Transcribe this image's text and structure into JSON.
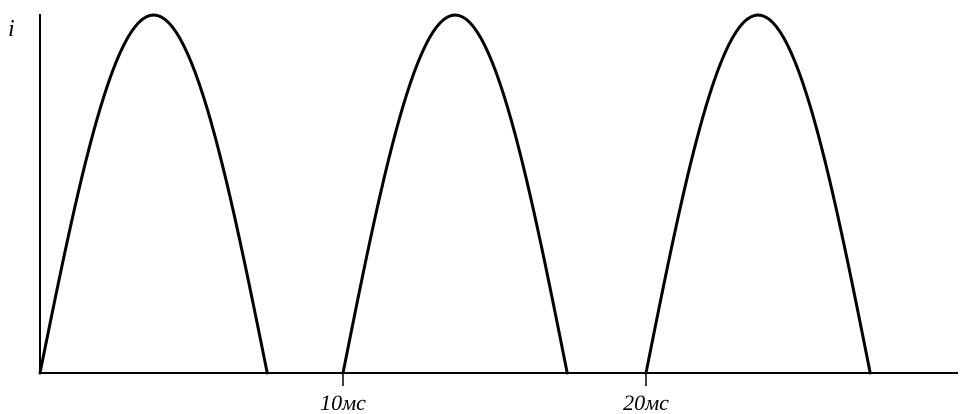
{
  "chart_data": {
    "type": "line",
    "xlabel": "",
    "ylabel": "i",
    "x_ticks": [
      {
        "value": 10,
        "label": "10мс"
      },
      {
        "value": 20,
        "label": "20мс"
      }
    ],
    "xlim": [
      0,
      30.3
    ],
    "ylim": [
      0,
      1.02
    ],
    "grid": false,
    "legend": "none",
    "line_color": "#000000",
    "series": [
      {
        "pulses": [
          {
            "start": 0,
            "end": 7.5,
            "peak": 1
          },
          {
            "start": 10,
            "end": 17.4,
            "peak": 1
          },
          {
            "start": 20,
            "end": 27.4,
            "peak": 1
          }
        ]
      }
    ]
  }
}
